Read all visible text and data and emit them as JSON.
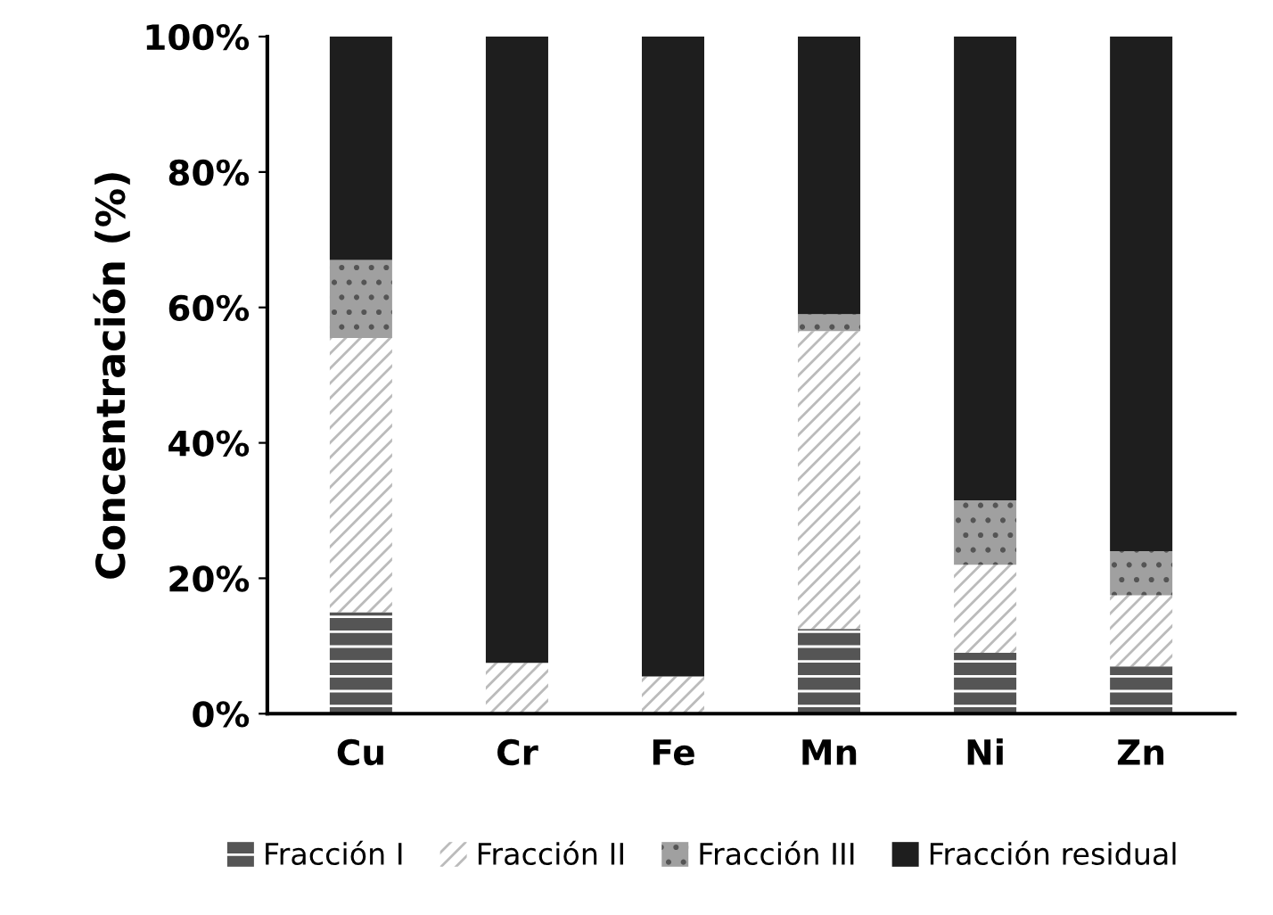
{
  "chart_data": {
    "type": "bar",
    "stacked": true,
    "ylabel": "Concentración (%)",
    "categories": [
      "Cu",
      "Cr",
      "Fe",
      "Mn",
      "Ni",
      "Zn"
    ],
    "series": [
      {
        "name": "Fracción I",
        "color": "#555555",
        "values": [
          15,
          0,
          0,
          12.5,
          9,
          7
        ]
      },
      {
        "name": "Fracción II",
        "color": "#ffffff",
        "values": [
          40.5,
          7.5,
          5.5,
          44,
          13,
          10.5
        ]
      },
      {
        "name": "Fracción III",
        "color": "#a0a0a0",
        "values": [
          11.5,
          0,
          0,
          2.5,
          9.5,
          6.5
        ]
      },
      {
        "name": "Fracción residual",
        "color": "#1e1e1e",
        "values": [
          33,
          92.5,
          94.5,
          41,
          68.5,
          76
        ]
      }
    ],
    "ylim": [
      0,
      100
    ],
    "yticks": [
      {
        "value": 0,
        "label": "0%"
      },
      {
        "value": 20,
        "label": "20%"
      },
      {
        "value": 40,
        "label": "40%"
      },
      {
        "value": 60,
        "label": "60%"
      },
      {
        "value": 80,
        "label": "80%"
      },
      {
        "value": 100,
        "label": "100%"
      }
    ],
    "grid": false,
    "legend": "bottom"
  }
}
